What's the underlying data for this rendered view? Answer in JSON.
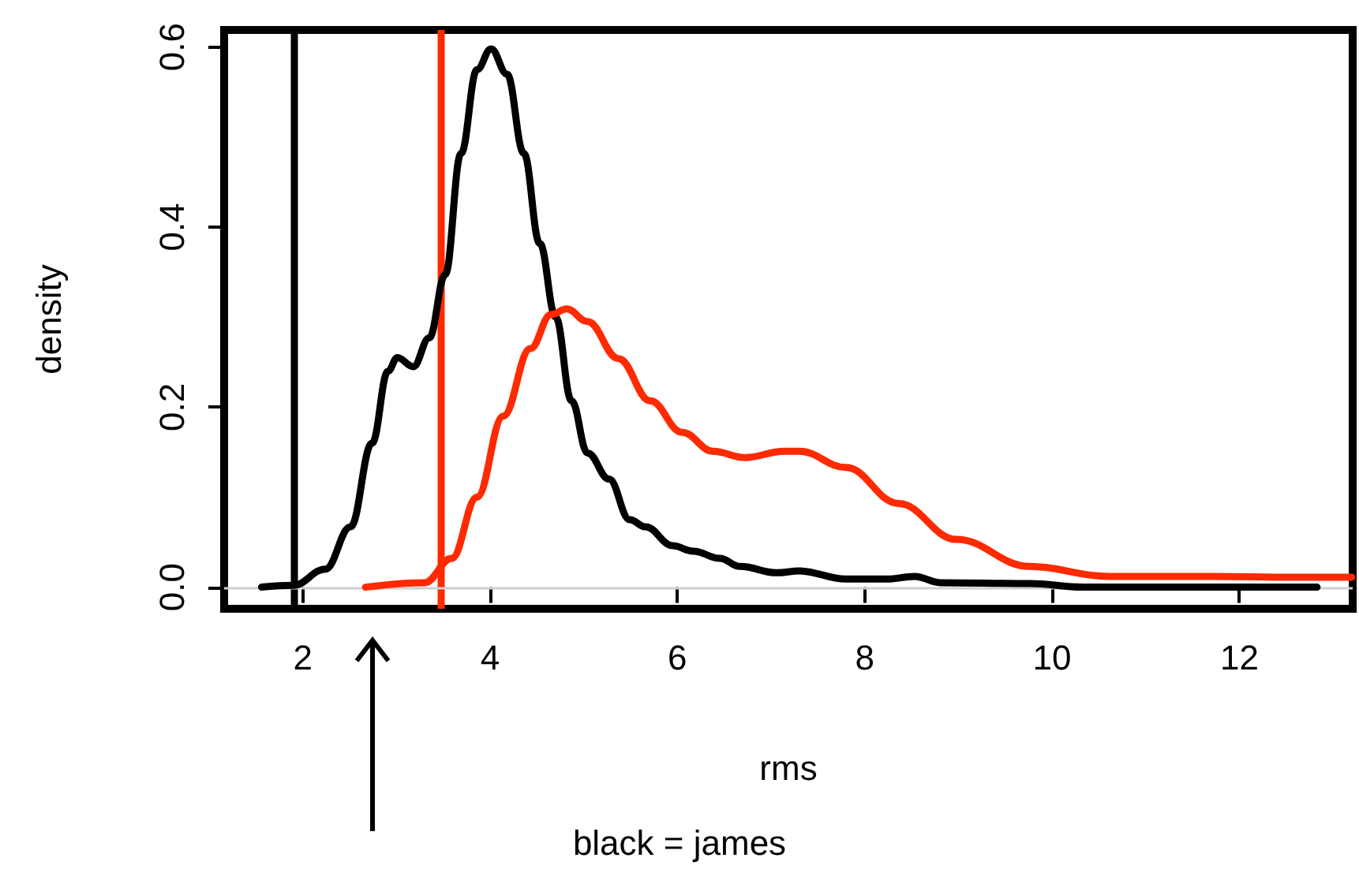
{
  "chart_data": {
    "type": "line",
    "xlabel": "rms",
    "ylabel": "density",
    "annotations": [
      "black = james"
    ],
    "xlim": [
      1.16,
      13.21
    ],
    "ylim": [
      -0.024,
      0.619
    ],
    "xticks": [
      2,
      4,
      6,
      8,
      10,
      12
    ],
    "yticks": [
      {
        "value": 0,
        "label": "0.0"
      },
      0.2,
      0.4,
      0.6
    ],
    "grid": false,
    "marker": "none",
    "line_style": "solid",
    "ref_lines": [
      {
        "axis": "x",
        "value": 1.9,
        "color": "#000000"
      },
      {
        "axis": "x",
        "value": 3.47,
        "color": "#ff2a00"
      },
      {
        "axis": "y",
        "value": 0,
        "color": "#d0d0d0"
      }
    ],
    "series": [
      {
        "color": "#000000",
        "x": [
          1.56,
          1.9,
          2.24,
          2.51,
          2.74,
          2.91,
          3.01,
          3.18,
          3.35,
          3.52,
          3.69,
          3.86,
          4.01,
          4.18,
          4.36,
          4.53,
          4.7,
          4.87,
          5.04,
          5.27,
          5.49,
          5.66,
          5.95,
          6.17,
          6.45,
          6.67,
          7.06,
          7.3,
          7.8,
          8.24,
          8.53,
          8.81,
          9.76,
          10.33,
          12.83
        ],
        "values": [
          0,
          0.002,
          0.02,
          0.067,
          0.16,
          0.24,
          0.255,
          0.245,
          0.277,
          0.347,
          0.482,
          0.575,
          0.598,
          0.57,
          0.482,
          0.382,
          0.3,
          0.207,
          0.149,
          0.12,
          0.075,
          0.067,
          0.046,
          0.04,
          0.032,
          0.023,
          0.016,
          0.018,
          0.009,
          0.009,
          0.012,
          0.005,
          0.004,
          0,
          0
        ]
      },
      {
        "color": "#ff2a00",
        "x": [
          2.67,
          3.3,
          3.59,
          3.86,
          4.14,
          4.43,
          4.65,
          4.82,
          5.04,
          5.37,
          5.71,
          6.05,
          6.38,
          6.72,
          7.14,
          7.3,
          7.8,
          8.36,
          8.98,
          9.76,
          10.6,
          11.73,
          12.57,
          13.2
        ],
        "values": [
          0,
          0.005,
          0.032,
          0.1,
          0.19,
          0.265,
          0.303,
          0.309,
          0.295,
          0.254,
          0.207,
          0.172,
          0.151,
          0.144,
          0.151,
          0.151,
          0.133,
          0.093,
          0.053,
          0.023,
          0.012,
          0.012,
          0.011,
          0.011
        ]
      }
    ]
  }
}
